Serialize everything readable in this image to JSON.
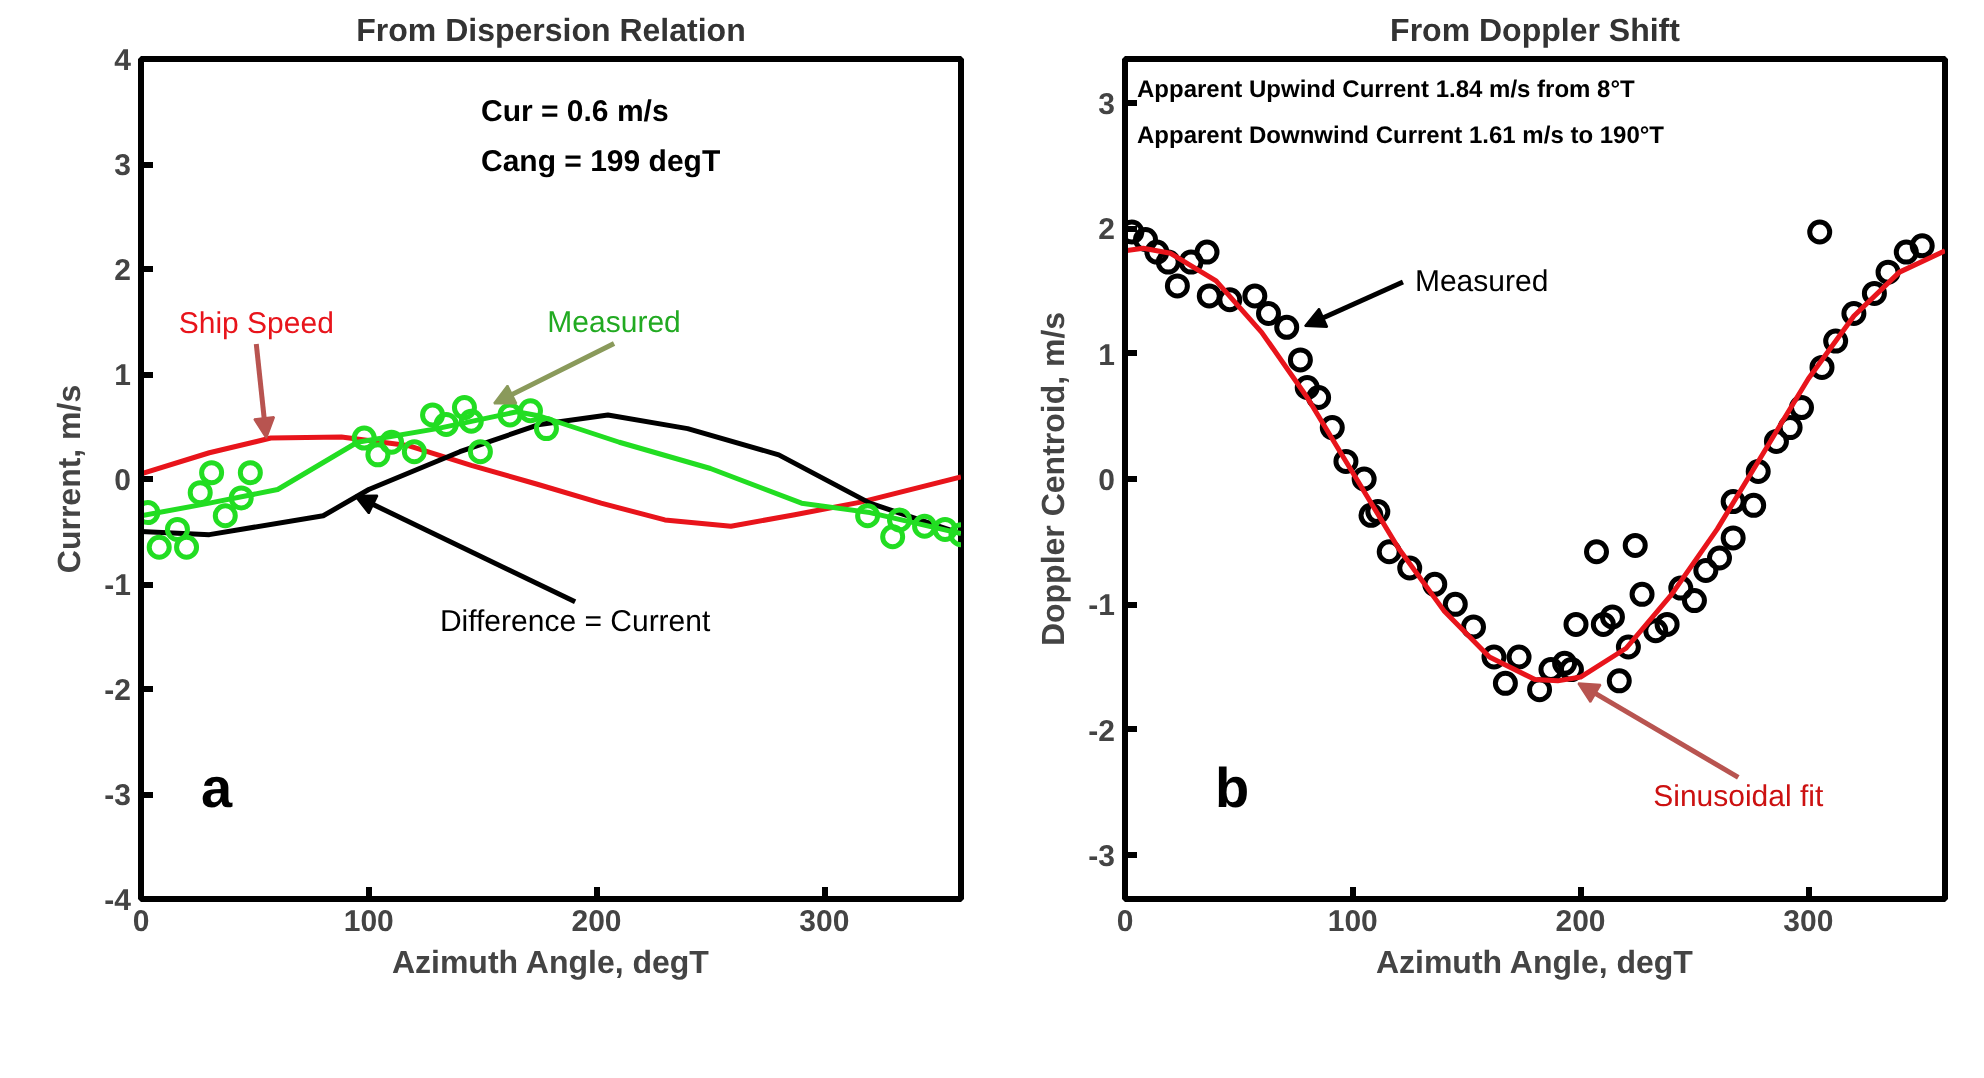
{
  "chart_data": [
    {
      "type": "line",
      "title": "From Dispersion Relation",
      "xlabel": "Azimuth Angle, degT",
      "ylabel": "Current, m/s",
      "xlim": [
        0,
        360
      ],
      "ylim": [
        -4,
        4
      ],
      "xticks": [
        0,
        100,
        200,
        300
      ],
      "yticks": [
        -4,
        -3,
        -2,
        -1,
        0,
        1,
        2,
        3,
        4
      ],
      "grid": false,
      "series": [
        {
          "color": "#e8141b",
          "x": [
            0,
            30,
            57,
            88,
            117,
            145,
            174,
            202,
            230,
            259,
            287,
            316,
            360
          ],
          "values": [
            0.05,
            0.25,
            0.39,
            0.4,
            0.32,
            0.13,
            -0.05,
            -0.23,
            -0.39,
            -0.45,
            -0.34,
            -0.22,
            0.02
          ]
        },
        {
          "color": "#000000",
          "x": [
            0,
            30,
            80,
            100,
            140,
            175,
            205,
            240,
            280,
            320,
            360
          ],
          "values": [
            -0.5,
            -0.53,
            -0.35,
            -0.1,
            0.26,
            0.52,
            0.61,
            0.48,
            0.23,
            -0.23,
            -0.52
          ]
        },
        {
          "color": "#22dd22",
          "x": [
            0,
            30,
            60,
            95,
            130,
            165,
            175,
            210,
            250,
            290,
            320,
            360
          ],
          "values": [
            -0.35,
            -0.23,
            -0.1,
            0.35,
            0.48,
            0.64,
            0.6,
            0.35,
            0.1,
            -0.23,
            -0.32,
            -0.52
          ]
        },
        {
          "type": "scatter",
          "marker": "circle",
          "color": "#22dd22",
          "x": [
            3,
            8,
            16,
            20,
            26,
            31,
            37,
            44,
            48,
            98,
            104,
            110,
            120,
            128,
            134,
            142,
            145,
            149,
            162,
            171,
            178,
            319,
            330,
            333,
            344,
            353,
            360
          ],
          "values": [
            -0.32,
            -0.65,
            -0.48,
            -0.65,
            -0.13,
            0.06,
            -0.35,
            -0.18,
            0.06,
            0.39,
            0.23,
            0.35,
            0.26,
            0.61,
            0.52,
            0.68,
            0.55,
            0.26,
            0.61,
            0.65,
            0.48,
            -0.35,
            -0.55,
            -0.39,
            -0.45,
            -0.48,
            -0.53
          ]
        }
      ],
      "annotations": [
        "Cur = 0.6 m/s",
        "Cang = 199 degT",
        "a",
        {
          "text": "Ship Speed",
          "x": 55,
          "y": 0.39
        },
        {
          "text": "Measured",
          "x": 155,
          "y": 0.72
        },
        {
          "text": "Difference = Current",
          "x": 94,
          "y": -0.16
        }
      ]
    },
    {
      "type": "scatter",
      "title": "From Doppler Shift",
      "xlabel": "Azimuth Angle, degT",
      "ylabel": "Doppler Centroid, m/s",
      "xlim": [
        0,
        360
      ],
      "ylim": [
        -3.35,
        3.35
      ],
      "xticks": [
        0,
        100,
        200,
        300
      ],
      "yticks": [
        -3,
        -2,
        -1,
        0,
        1,
        2,
        3
      ],
      "grid": false,
      "series": [
        {
          "marker": "circle",
          "color": "#000000",
          "x": [
            3,
            9,
            14,
            19,
            23,
            29,
            36,
            37,
            46,
            57,
            63,
            71,
            77,
            80,
            85,
            91,
            97,
            105,
            108,
            111,
            116,
            125,
            136,
            145,
            153,
            162,
            167,
            173,
            182,
            187,
            193,
            196,
            198,
            207,
            210,
            214,
            217,
            221,
            224,
            227,
            233,
            238,
            244,
            250,
            255,
            261,
            267,
            267,
            276,
            278,
            286,
            292,
            297,
            305,
            306,
            312,
            320,
            329,
            335,
            343,
            350
          ],
          "values": [
            1.97,
            1.91,
            1.81,
            1.73,
            1.54,
            1.73,
            1.81,
            1.46,
            1.43,
            1.46,
            1.32,
            1.21,
            0.95,
            0.73,
            0.65,
            0.41,
            0.14,
            0.0,
            -0.29,
            -0.26,
            -0.58,
            -0.71,
            -0.84,
            -1.0,
            -1.18,
            -1.42,
            -1.63,
            -1.42,
            -1.68,
            -1.52,
            -1.47,
            -1.52,
            -1.16,
            -0.58,
            -1.16,
            -1.1,
            -1.61,
            -1.34,
            -0.53,
            -0.92,
            -1.21,
            -1.16,
            -0.87,
            -0.97,
            -0.73,
            -0.63,
            -0.47,
            -0.18,
            -0.21,
            0.06,
            0.3,
            0.41,
            0.57,
            1.97,
            0.89,
            1.1,
            1.32,
            1.48,
            1.65,
            1.81,
            1.86
          ]
        },
        {
          "type": "line",
          "color": "#e8141b",
          "x": [
            0,
            8,
            20,
            40,
            60,
            80,
            100,
            120,
            140,
            160,
            180,
            190,
            200,
            220,
            240,
            260,
            280,
            300,
            320,
            340,
            360
          ],
          "values": [
            1.82,
            1.84,
            1.8,
            1.58,
            1.17,
            0.65,
            0.05,
            -0.55,
            -1.05,
            -1.42,
            -1.6,
            -1.61,
            -1.58,
            -1.35,
            -0.92,
            -0.4,
            0.2,
            0.8,
            1.3,
            1.65,
            1.82
          ]
        }
      ],
      "annotations": [
        "Apparent Upwind Current 1.84 m/s from 8°T",
        "Apparent Downwind Current 1.61 m/s to 190°T",
        "b",
        {
          "text": "Measured",
          "x": 79,
          "y": 1.22
        },
        {
          "text": "Sinusoidal fit",
          "x": 199,
          "y": -1.63
        }
      ]
    }
  ]
}
